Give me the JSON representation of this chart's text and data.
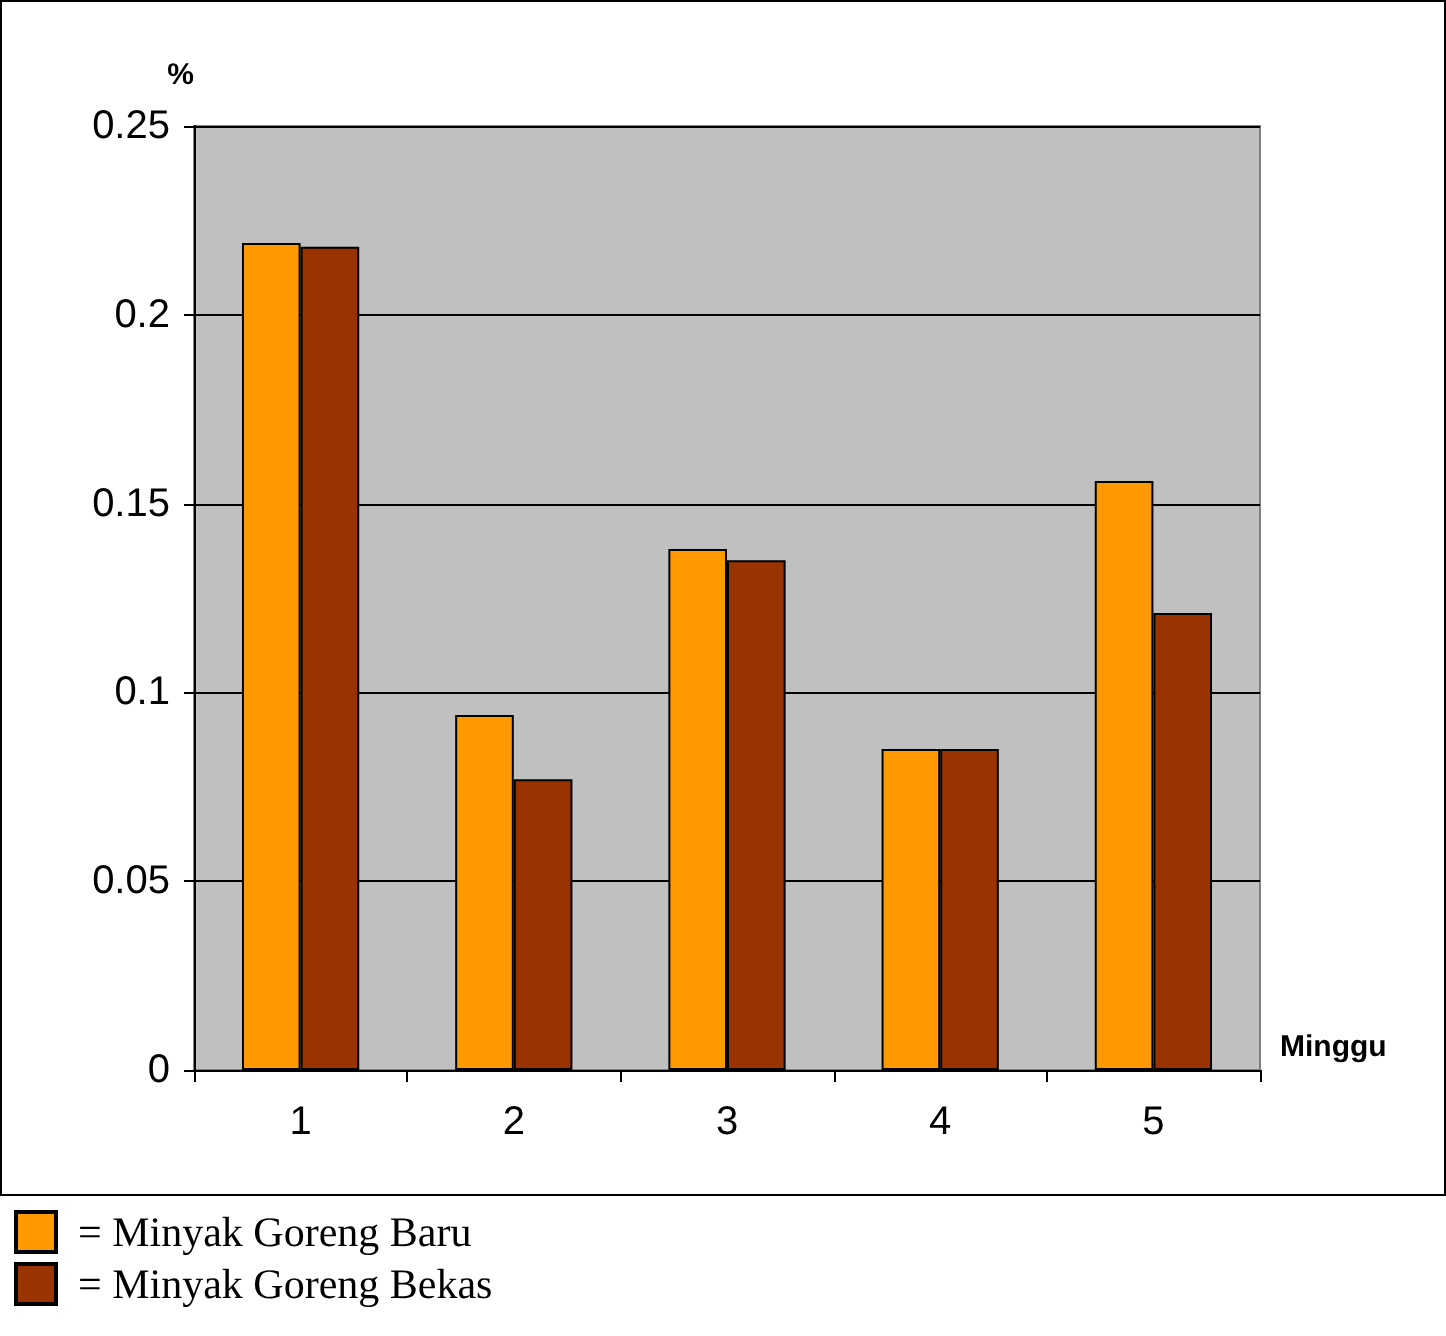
{
  "chart_data": {
    "type": "bar",
    "xlabel": "Minggu",
    "ylabel": "%",
    "categories": [
      "1",
      "2",
      "3",
      "4",
      "5"
    ],
    "series": [
      {
        "name": "= Minyak Goreng Baru",
        "color": "#ff9900",
        "values": [
          0.219,
          0.094,
          0.138,
          0.085,
          0.156
        ]
      },
      {
        "name": "= Minyak Goreng Bekas",
        "color": "#993300",
        "values": [
          0.218,
          0.077,
          0.135,
          0.085,
          0.121
        ]
      }
    ],
    "ylim": [
      0,
      0.25
    ],
    "yticks": [
      0,
      0.05,
      0.1,
      0.15,
      0.2,
      0.25
    ],
    "grid": "y",
    "legend": "bottom left"
  }
}
